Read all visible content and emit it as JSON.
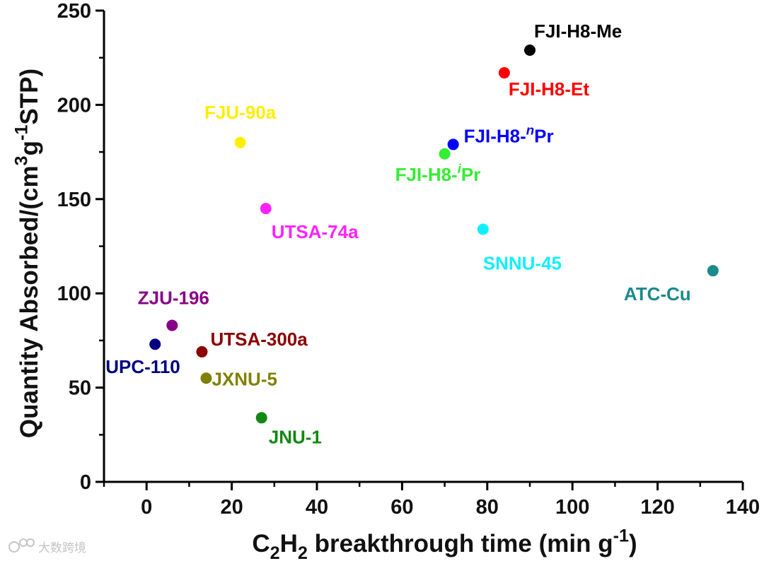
{
  "chart_data": {
    "type": "scatter",
    "title": "",
    "xlabel": {
      "parts": [
        {
          "text": "C",
          "style": "normal"
        },
        {
          "text": "2",
          "style": "sub"
        },
        {
          "text": "H",
          "style": "normal"
        },
        {
          "text": "2",
          "style": "sub"
        },
        {
          "text": " breakthrough time (min g",
          "style": "normal"
        },
        {
          "text": "-1",
          "style": "sup"
        },
        {
          "text": ")",
          "style": "normal"
        }
      ]
    },
    "ylabel": {
      "parts": [
        {
          "text": "Quantity Absorbed/(cm",
          "style": "normal"
        },
        {
          "text": "3",
          "style": "sup"
        },
        {
          "text": "g",
          "style": "normal"
        },
        {
          "text": "-1",
          "style": "sup"
        },
        {
          "text": "STP)",
          "style": "normal"
        }
      ]
    },
    "xlim": [
      -10,
      140
    ],
    "ylim": [
      0,
      250
    ],
    "xticks": [
      0,
      20,
      40,
      60,
      80,
      100,
      120,
      140
    ],
    "yticks": [
      0,
      50,
      100,
      150,
      200,
      250
    ],
    "xtick_labels": [
      "0",
      "20",
      "40",
      "60",
      "80",
      "100",
      "120",
      "140"
    ],
    "ytick_labels": [
      "0",
      "50",
      "100",
      "150",
      "200",
      "250"
    ],
    "grid": false,
    "points": [
      {
        "name": "FJI-H8-Me",
        "label_parts": [
          {
            "text": "FJI-H8-Me",
            "style": "normal"
          }
        ],
        "x": 90,
        "y": 229,
        "color": "#000000",
        "label_pos": "above-right"
      },
      {
        "name": "FJI-H8-Et",
        "label_parts": [
          {
            "text": "FJI-H8-Et",
            "style": "normal"
          }
        ],
        "x": 84,
        "y": 217,
        "color": "#ff0000",
        "label_pos": "below-right"
      },
      {
        "name": "FJI-H8-nPr",
        "label_parts": [
          {
            "text": "FJI-H8-",
            "style": "normal"
          },
          {
            "text": "n",
            "style": "sup-italic"
          },
          {
            "text": "Pr",
            "style": "normal"
          }
        ],
        "x": 72,
        "y": 179,
        "color": "#0000ff",
        "label_pos": "right"
      },
      {
        "name": "FJI-H8-iPr",
        "label_parts": [
          {
            "text": "FJI-H8-",
            "style": "normal"
          },
          {
            "text": "i",
            "style": "sup-italic"
          },
          {
            "text": "Pr",
            "style": "normal"
          }
        ],
        "x": 70,
        "y": 174,
        "color": "#33ee33",
        "label_pos": "below-left"
      },
      {
        "name": "FJU-90a",
        "label_parts": [
          {
            "text": "FJU-90a",
            "style": "normal"
          }
        ],
        "x": 22,
        "y": 180,
        "color": "#ffee00",
        "label_pos": "above"
      },
      {
        "name": "UTSA-74a",
        "label_parts": [
          {
            "text": "UTSA-74a",
            "style": "normal"
          }
        ],
        "x": 28,
        "y": 145,
        "color": "#ff22ff",
        "label_pos": "below-right"
      },
      {
        "name": "SNNU-45",
        "label_parts": [
          {
            "text": "SNNU-45",
            "style": "normal"
          }
        ],
        "x": 79,
        "y": 134,
        "color": "#11eeff",
        "label_pos": "below"
      },
      {
        "name": "ATC-Cu",
        "label_parts": [
          {
            "text": "ATC-Cu",
            "style": "normal"
          }
        ],
        "x": 133,
        "y": 112,
        "color": "#1a8a8a",
        "label_pos": "below-left"
      },
      {
        "name": "ZJU-196",
        "label_parts": [
          {
            "text": "ZJU-196",
            "style": "normal"
          }
        ],
        "x": 6,
        "y": 83,
        "color": "#880088",
        "label_pos": "above"
      },
      {
        "name": "UTSA-300a",
        "label_parts": [
          {
            "text": "UTSA-300a",
            "style": "normal"
          }
        ],
        "x": 13,
        "y": 69,
        "color": "#8b0000",
        "label_pos": "right"
      },
      {
        "name": "UPC-110",
        "label_parts": [
          {
            "text": "UPC-110",
            "style": "normal"
          }
        ],
        "x": 2,
        "y": 73,
        "color": "#000080",
        "label_pos": "below-left"
      },
      {
        "name": "JXNU-5",
        "label_parts": [
          {
            "text": "JXNU-5",
            "style": "normal"
          }
        ],
        "x": 14,
        "y": 55,
        "color": "#808000",
        "label_pos": "right"
      },
      {
        "name": "JNU-1",
        "label_parts": [
          {
            "text": "JNU-1",
            "style": "normal"
          }
        ],
        "x": 27,
        "y": 34,
        "color": "#118811",
        "label_pos": "below-right"
      }
    ]
  },
  "watermark": {
    "text": "大数跨境",
    "icon": "speech-bubble-logo-icon",
    "color": "#c4c4c4"
  }
}
